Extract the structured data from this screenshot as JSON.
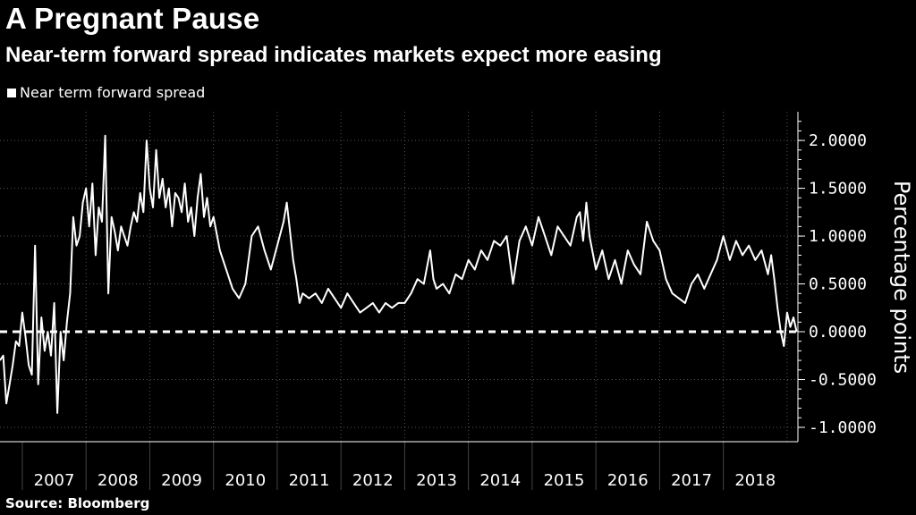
{
  "header": {
    "title": "A Pregnant Pause",
    "subtitle": "Near-term forward spread indicates markets expect more easing"
  },
  "legend": {
    "label": "Near term forward spread"
  },
  "footer": {
    "source": "Source: Bloomberg"
  },
  "chart_data": {
    "type": "line",
    "title": "A Pregnant Pause",
    "subtitle": "Near-term forward spread indicates markets expect more easing",
    "ylabel": "Percentage points",
    "xlabel": "",
    "y_ticks": [
      "2.0000",
      "1.5000",
      "1.0000",
      "0.5000",
      "0.0000",
      "-0.5000",
      "-1.0000"
    ],
    "y_tick_values": [
      2,
      1.5,
      1,
      0.5,
      0,
      -0.5,
      -1
    ],
    "ylim": [
      -1.15,
      2.3
    ],
    "x_tick_labels": [
      "2007",
      "2008",
      "2009",
      "2010",
      "2011",
      "2012",
      "2013",
      "2014",
      "2015",
      "2016",
      "2017",
      "2018"
    ],
    "xlim": [
      2006.65,
      2019.17
    ],
    "grid": true,
    "reference_line": {
      "y": 0,
      "style": "dashed"
    },
    "colors": {
      "background": "#000000",
      "line": "#ffffff",
      "grid": "#555555"
    },
    "series": [
      {
        "name": "Near term forward spread",
        "x": [
          2006.65,
          2006.7,
          2006.75,
          2006.8,
          2006.85,
          2006.9,
          2006.95,
          2007.0,
          2007.05,
          2007.1,
          2007.15,
          2007.2,
          2007.25,
          2007.3,
          2007.35,
          2007.4,
          2007.45,
          2007.5,
          2007.55,
          2007.6,
          2007.65,
          2007.7,
          2007.75,
          2007.8,
          2007.85,
          2007.9,
          2007.95,
          2008.0,
          2008.05,
          2008.1,
          2008.15,
          2008.2,
          2008.25,
          2008.3,
          2008.35,
          2008.4,
          2008.45,
          2008.5,
          2008.55,
          2008.6,
          2008.65,
          2008.7,
          2008.75,
          2008.8,
          2008.85,
          2008.9,
          2008.95,
          2009.0,
          2009.05,
          2009.1,
          2009.15,
          2009.2,
          2009.25,
          2009.3,
          2009.35,
          2009.4,
          2009.45,
          2009.5,
          2009.55,
          2009.6,
          2009.65,
          2009.7,
          2009.75,
          2009.8,
          2009.85,
          2009.9,
          2009.95,
          2010.0,
          2010.1,
          2010.2,
          2010.3,
          2010.4,
          2010.5,
          2010.6,
          2010.7,
          2010.8,
          2010.9,
          2011.0,
          2011.1,
          2011.15,
          2011.2,
          2011.25,
          2011.3,
          2011.35,
          2011.4,
          2011.5,
          2011.6,
          2011.7,
          2011.8,
          2011.9,
          2012.0,
          2012.1,
          2012.2,
          2012.3,
          2012.4,
          2012.5,
          2012.6,
          2012.7,
          2012.8,
          2012.9,
          2013.0,
          2013.1,
          2013.2,
          2013.3,
          2013.4,
          2013.45,
          2013.5,
          2013.6,
          2013.7,
          2013.8,
          2013.9,
          2014.0,
          2014.1,
          2014.2,
          2014.3,
          2014.4,
          2014.5,
          2014.6,
          2014.7,
          2014.8,
          2014.9,
          2015.0,
          2015.1,
          2015.2,
          2015.3,
          2015.4,
          2015.5,
          2015.6,
          2015.7,
          2015.75,
          2015.8,
          2015.85,
          2015.9,
          2016.0,
          2016.1,
          2016.2,
          2016.3,
          2016.4,
          2016.5,
          2016.6,
          2016.7,
          2016.8,
          2016.9,
          2017.0,
          2017.1,
          2017.2,
          2017.3,
          2017.4,
          2017.5,
          2017.6,
          2017.7,
          2017.8,
          2017.9,
          2018.0,
          2018.1,
          2018.2,
          2018.3,
          2018.4,
          2018.5,
          2018.6,
          2018.7,
          2018.75,
          2018.8,
          2018.85,
          2018.9,
          2018.95,
          2019.0,
          2019.05,
          2019.1,
          2019.15
        ],
        "values": [
          -0.3,
          -0.25,
          -0.75,
          -0.55,
          -0.35,
          -0.1,
          -0.15,
          0.2,
          -0.05,
          -0.35,
          -0.45,
          0.9,
          -0.55,
          0.15,
          -0.2,
          0.0,
          -0.25,
          0.3,
          -0.85,
          0.0,
          -0.3,
          0.1,
          0.4,
          1.2,
          0.9,
          1.0,
          1.35,
          1.5,
          1.1,
          1.55,
          0.8,
          1.3,
          1.15,
          2.05,
          0.4,
          1.2,
          1.05,
          0.85,
          1.1,
          1.0,
          0.9,
          1.1,
          1.25,
          1.15,
          1.45,
          1.25,
          2.0,
          1.5,
          1.3,
          1.9,
          1.4,
          1.6,
          1.3,
          1.5,
          1.1,
          1.45,
          1.4,
          1.25,
          1.55,
          1.15,
          1.3,
          1.0,
          1.4,
          1.65,
          1.2,
          1.4,
          1.1,
          1.2,
          0.85,
          0.65,
          0.45,
          0.35,
          0.5,
          1.0,
          1.1,
          0.85,
          0.65,
          0.9,
          1.15,
          1.35,
          1.05,
          0.75,
          0.55,
          0.3,
          0.4,
          0.35,
          0.4,
          0.3,
          0.45,
          0.35,
          0.25,
          0.4,
          0.3,
          0.2,
          0.25,
          0.3,
          0.2,
          0.3,
          0.25,
          0.3,
          0.3,
          0.4,
          0.55,
          0.5,
          0.85,
          0.55,
          0.45,
          0.5,
          0.4,
          0.6,
          0.55,
          0.75,
          0.65,
          0.85,
          0.75,
          0.95,
          0.9,
          1.0,
          0.5,
          0.95,
          1.1,
          0.9,
          1.2,
          1.0,
          0.8,
          1.1,
          1.0,
          0.9,
          1.2,
          1.25,
          0.95,
          1.35,
          1.0,
          0.65,
          0.85,
          0.55,
          0.75,
          0.5,
          0.85,
          0.7,
          0.6,
          1.15,
          0.95,
          0.85,
          0.55,
          0.4,
          0.35,
          0.3,
          0.5,
          0.6,
          0.45,
          0.6,
          0.75,
          1.0,
          0.75,
          0.95,
          0.8,
          0.9,
          0.75,
          0.85,
          0.6,
          0.8,
          0.55,
          0.25,
          0.0,
          -0.15,
          0.2,
          0.05,
          0.15,
          0.0
        ]
      }
    ]
  }
}
